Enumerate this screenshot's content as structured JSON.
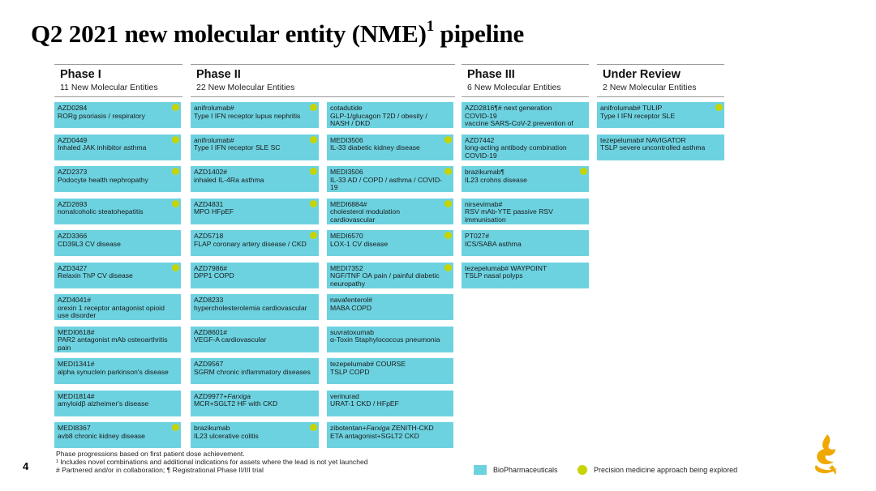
{
  "title": "Q2 2021 new molecular entity (NME)",
  "title_sup": "1",
  "phases": [
    {
      "name": "Phase I",
      "count": "11 New Molecular Entities",
      "columns": [
        [
          {
            "name": "AZD0284",
            "desc": "RORg psoriasis / respiratory",
            "precision": true
          },
          {
            "name": "AZD0449",
            "desc": "Inhaled JAK inhibitor asthma",
            "precision": true
          },
          {
            "name": "AZD2373",
            "desc": "Podocyte health nephropathy",
            "precision": true
          },
          {
            "name": "AZD2693",
            "desc": "nonalcoholic steatohepatitis",
            "precision": true
          },
          {
            "name": "AZD3366",
            "desc": "CD39L3 CV disease",
            "precision": false
          },
          {
            "name": "AZD3427",
            "desc": "Relaxin ThP CV disease",
            "precision": true
          },
          {
            "name": "AZD4041#",
            "desc": "orexin 1 receptor antagonist opioid use disorder",
            "precision": false
          },
          {
            "name": "MEDI0618#",
            "desc": "PAR2 antagonist mAb osteoarthritis pain",
            "precision": false
          },
          {
            "name": "MEDI1341#",
            "desc": "alpha synuclein parkinson's disease",
            "precision": false
          },
          {
            "name": "MEDI1814#",
            "desc": "amyloidβ alzheimer's disease",
            "precision": false
          },
          {
            "name": "MEDI8367",
            "desc": "avb8 chronic kidney disease",
            "precision": true
          }
        ]
      ]
    },
    {
      "name": "Phase II",
      "count": "22 New Molecular Entities",
      "columns": [
        [
          {
            "name": "anifrolumab#",
            "desc": "Type I IFN receptor lupus nephritis",
            "precision": true
          },
          {
            "name": "anifrolumab#",
            "desc": "Type I IFN receptor SLE SC",
            "precision": true
          },
          {
            "name": "AZD1402#",
            "desc": "inhaled IL-4Ra asthma",
            "precision": true
          },
          {
            "name": "AZD4831",
            "desc": "MPO HFpEF",
            "precision": true
          },
          {
            "name": "AZD5718",
            "desc": "FLAP coronary artery disease / CKD",
            "precision": true
          },
          {
            "name": "AZD7986#",
            "desc": "DPP1 COPD",
            "precision": false
          },
          {
            "name": "AZD8233",
            "desc": "hypercholesterolemia cardiovascular",
            "precision": false
          },
          {
            "name": "AZD8601#",
            "desc": "VEGF-A cardiovascular",
            "precision": false
          },
          {
            "name": "AZD9567",
            "desc": "SGRM chronic inflammatory diseases",
            "precision": false
          },
          {
            "name": "AZD9977+",
            "name_italic": "Farxiga",
            "desc": "MCR+SGLT2 HF with CKD",
            "precision": false
          },
          {
            "name": "brazikumab",
            "desc": "IL23 ulcerative colitis",
            "precision": true
          }
        ],
        [
          {
            "name": "cotadutide",
            "desc": "GLP-1/glucagon T2D / obesity / NASH / DKD",
            "precision": false
          },
          {
            "name": "MEDI3506",
            "desc": "IL-33 diabetic kidney disease",
            "precision": true
          },
          {
            "name": "MEDI3506",
            "desc": "IL-33 AD / COPD / asthma / COVID-19",
            "precision": true
          },
          {
            "name": "MEDI6884#",
            "desc": "cholesterol modulation cardiovascular",
            "precision": true
          },
          {
            "name": "MEDI6570",
            "desc": "LOX-1 CV disease",
            "precision": true
          },
          {
            "name": "MEDI7352",
            "desc": "NGF/TNF OA pain / painful diabetic neuropathy",
            "precision": true
          },
          {
            "name": "navafenterol#",
            "desc": "MABA COPD",
            "precision": false
          },
          {
            "name": "suvratoxumab",
            "desc": "α-Toxin Staphylococcus pneumonia",
            "precision": false
          },
          {
            "name": "tezepelumab# COURSE",
            "desc": "TSLP COPD",
            "precision": false
          },
          {
            "name": "verinurad",
            "desc": "URAT-1 CKD / HFpEF",
            "precision": false
          },
          {
            "name": "zibotentan+",
            "name_italic": "Farxiga",
            "name_after": " ZENITH-CKD",
            "desc": "ETA antagonist+SGLT2 CKD",
            "precision": false
          }
        ]
      ]
    },
    {
      "name": "Phase III",
      "count": "6 New Molecular Entities",
      "columns": [
        [
          {
            "name": "AZD2816¶# next generation COVID-19",
            "desc": "vaccine SARS-CoV-2 prevention of COVID-19",
            "precision": false
          },
          {
            "name": "AZD7442",
            "desc": "long-acting antibody combination COVID-19",
            "precision": false
          },
          {
            "name": "brazikumab¶",
            "desc": "IL23 crohns disease",
            "precision": true
          },
          {
            "name": "nirsevimab#",
            "desc": "RSV mAb-YTE passive RSV immunisation",
            "precision": false
          },
          {
            "name": "PT027#",
            "desc": "ICS/SABA asthma",
            "precision": false
          },
          {
            "name": "tezepelumab# WAYPOINT",
            "desc": "TSLP nasal polyps",
            "precision": false
          }
        ]
      ]
    },
    {
      "name": "Under Review",
      "count": "2 New Molecular Entities",
      "columns": [
        [
          {
            "name": "anifrolumab# TULIP",
            "desc": "Type I IFN receptor SLE",
            "precision": true
          },
          {
            "name": "tezepelumab# NAVIGATOR",
            "desc": "TSLP severe uncontrolled asthma",
            "precision": false
          }
        ]
      ]
    }
  ],
  "footnotes": [
    "Phase progressions based on first patient dose achievement.",
    "¹ Includes novel combinations and additional indications for assets where the lead is not yet launched",
    "# Partnered and/or in collaboration; ¶ Registrational Phase II/III trial"
  ],
  "page_number": "4",
  "legend": {
    "biopharma": "BioPharmaceuticals",
    "precision": "Precision medicine approach being explored"
  },
  "colors": {
    "card": "#6dd2e0",
    "precision_dot": "#c7d400",
    "logo": "#f0a800"
  }
}
